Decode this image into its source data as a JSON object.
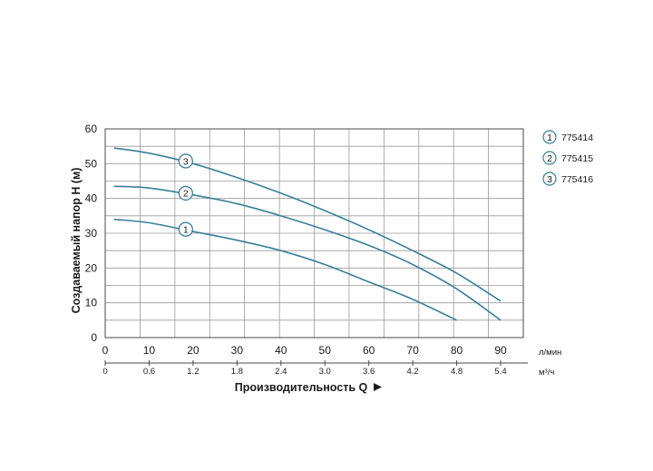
{
  "chart_data": {
    "type": "line",
    "ylabel": "Создаваемый напор H (м)",
    "xlabel": "Производительность Q",
    "x_unit_primary": "л/мин",
    "x_unit_secondary": "м³/ч",
    "xlim": [
      0,
      95
    ],
    "ylim": [
      0,
      60
    ],
    "x_ticks": [
      "0",
      "10",
      "20",
      "30",
      "40",
      "50",
      "60",
      "70",
      "80",
      "90"
    ],
    "x_ticks_secondary": [
      "0",
      "0.6",
      "1.2",
      "1.8",
      "2.4",
      "3.0",
      "3.6",
      "4.2",
      "4.8",
      "5.4"
    ],
    "y_ticks": [
      "0",
      "10",
      "20",
      "30",
      "40",
      "50",
      "60"
    ],
    "grid": true,
    "legend_position": "right",
    "line_color": "#3a7f99",
    "series": [
      {
        "marker": "1",
        "name": "775414",
        "x": [
          2,
          10,
          20,
          30,
          40,
          50,
          60,
          70,
          80
        ],
        "y": [
          34,
          33,
          30.5,
          28,
          25,
          21,
          16,
          11,
          5
        ]
      },
      {
        "marker": "2",
        "name": "775415",
        "x": [
          2,
          10,
          20,
          30,
          40,
          50,
          60,
          70,
          80,
          90
        ],
        "y": [
          43.5,
          43,
          41,
          38.5,
          35,
          31,
          26.5,
          21,
          14,
          5
        ]
      },
      {
        "marker": "3",
        "name": "775416",
        "x": [
          2,
          10,
          20,
          30,
          40,
          50,
          60,
          70,
          80,
          90
        ],
        "y": [
          54.5,
          53,
          50,
          46,
          41.5,
          36.5,
          31,
          25,
          18.5,
          10.5
        ]
      }
    ],
    "marker_x": 17.5
  }
}
